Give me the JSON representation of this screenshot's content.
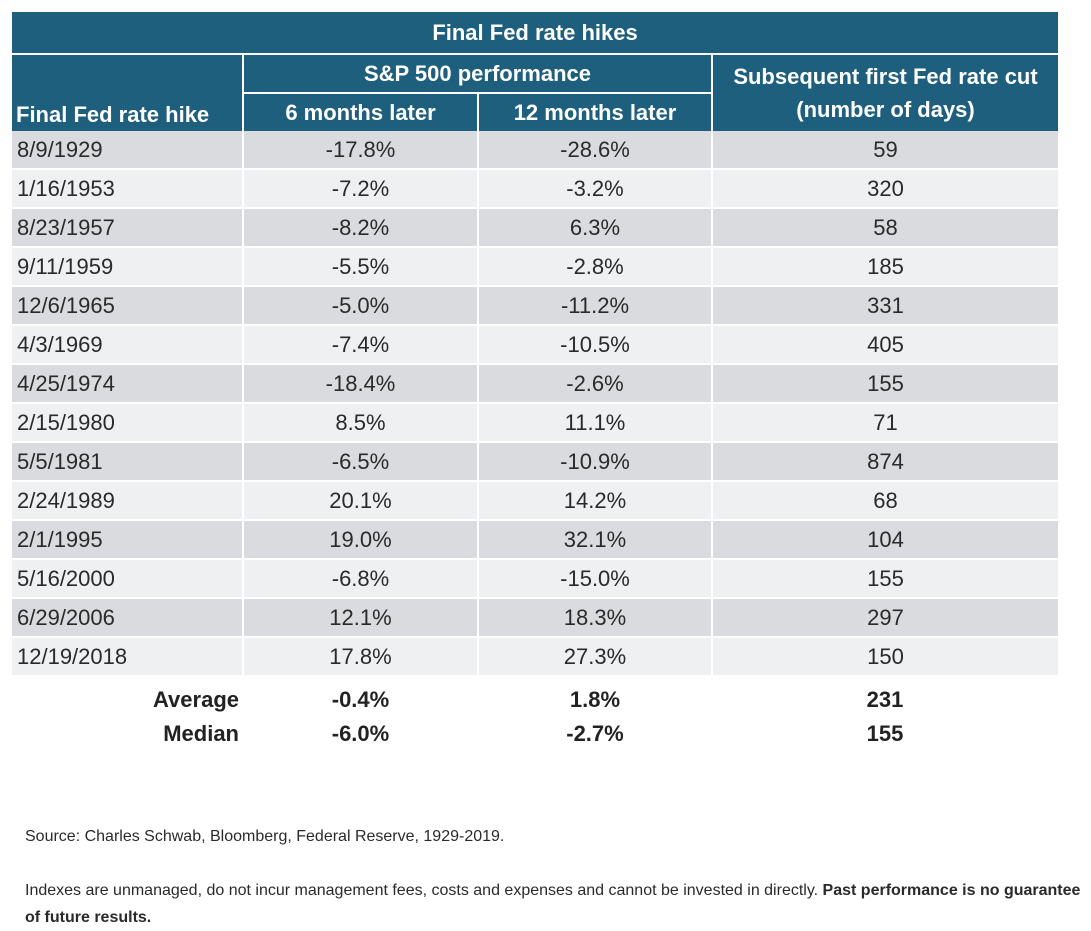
{
  "chart_data": {
    "type": "table",
    "title": "Final Fed rate hikes",
    "group_header": "S&P 500 performance",
    "columns": [
      "Final Fed rate hike",
      "6 months later",
      "12 months later",
      "Subsequent first Fed rate cut (number of days)"
    ],
    "rows": [
      [
        "8/9/1929",
        "-17.8%",
        "-28.6%",
        "59"
      ],
      [
        "1/16/1953",
        "-7.2%",
        "-3.2%",
        "320"
      ],
      [
        "8/23/1957",
        "-8.2%",
        "6.3%",
        "58"
      ],
      [
        "9/11/1959",
        "-5.5%",
        "-2.8%",
        "185"
      ],
      [
        "12/6/1965",
        "-5.0%",
        "-11.2%",
        "331"
      ],
      [
        "4/3/1969",
        "-7.4%",
        "-10.5%",
        "405"
      ],
      [
        "4/25/1974",
        "-18.4%",
        "-2.6%",
        "155"
      ],
      [
        "2/15/1980",
        "8.5%",
        "11.1%",
        "71"
      ],
      [
        "5/5/1981",
        "-6.5%",
        "-10.9%",
        "874"
      ],
      [
        "2/24/1989",
        "20.1%",
        "14.2%",
        "68"
      ],
      [
        "2/1/1995",
        "19.0%",
        "32.1%",
        "104"
      ],
      [
        "5/16/2000",
        "-6.8%",
        "-15.0%",
        "155"
      ],
      [
        "6/29/2006",
        "12.1%",
        "18.3%",
        "297"
      ],
      [
        "12/19/2018",
        "17.8%",
        "27.3%",
        "150"
      ]
    ],
    "summary": [
      [
        "Average",
        "-0.4%",
        "1.8%",
        "231"
      ],
      [
        "Median",
        "-6.0%",
        "-2.7%",
        "155"
      ]
    ],
    "colors": {
      "header_bg": "#1f5f7e",
      "row_dark": "#d9dbde",
      "row_light": "#eef0f2"
    }
  },
  "footnotes": {
    "source": "Source: Charles Schwab, Bloomberg, Federal Reserve, 1929-2019.",
    "disclaimer": "Indexes are unmanaged, do not incur management fees, costs and expenses and cannot be invested in directly.",
    "disclaimer_bold": "Past performance is no guarantee of future results."
  }
}
